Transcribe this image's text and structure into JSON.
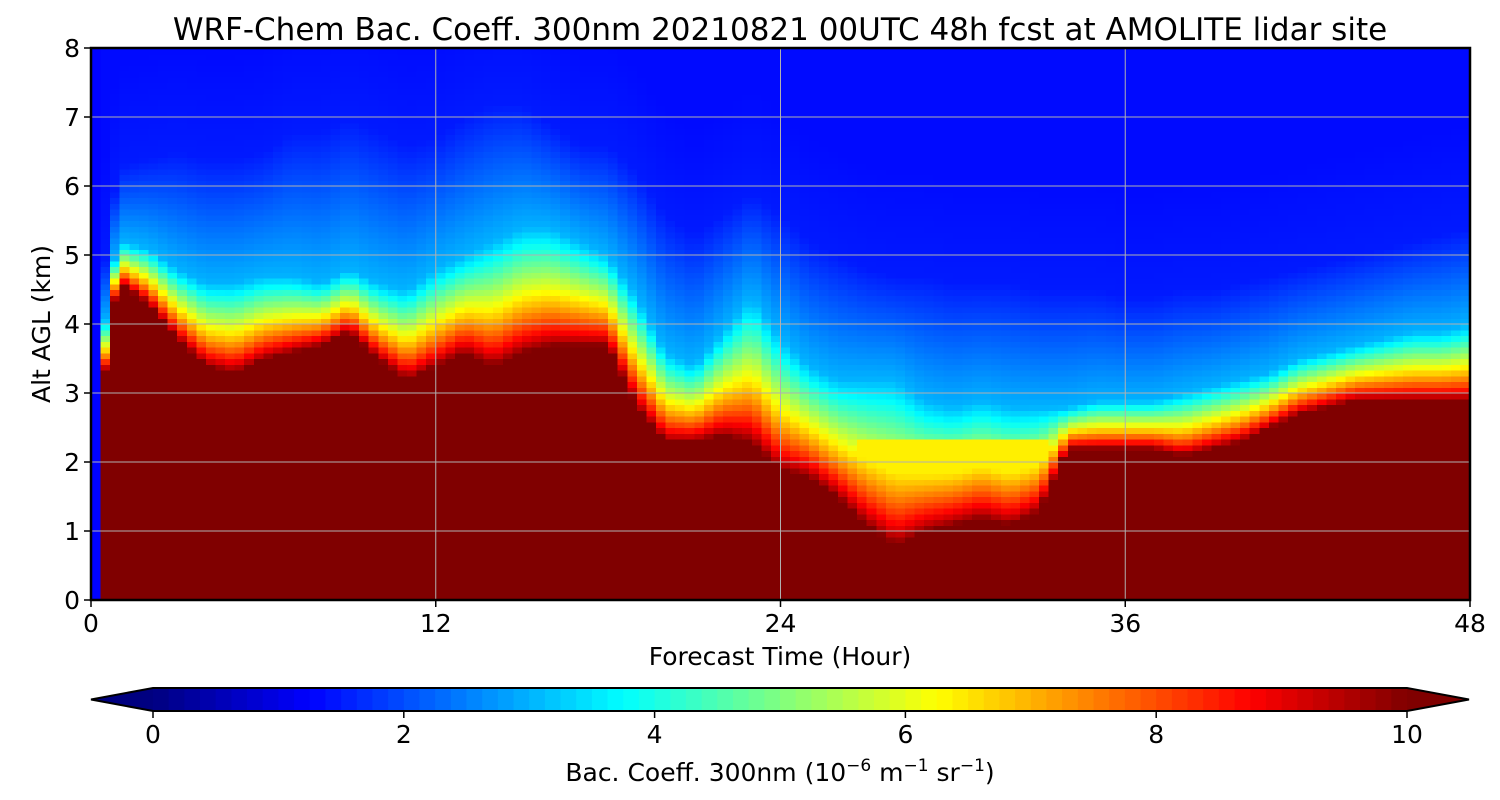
{
  "chart_data": {
    "type": "heatmap",
    "title": "WRF-Chem Bac. Coeff. 300nm  20210821 00UTC 48h fcst at AMOLITE lidar site",
    "xlabel": "Forecast Time (Hour)",
    "ylabel": "Alt AGL (km)",
    "xlim": [
      0,
      48
    ],
    "ylim": [
      0,
      8
    ],
    "x_ticks": [
      "0",
      "12",
      "24",
      "36",
      "48"
    ],
    "x_tick_values": [
      0,
      12,
      24,
      36,
      48
    ],
    "y_ticks": [
      "0",
      "1",
      "2",
      "3",
      "4",
      "5",
      "6",
      "7",
      "8"
    ],
    "y_tick_values": [
      0,
      1,
      2,
      3,
      4,
      5,
      6,
      7,
      8
    ],
    "grid": true,
    "colormap": "jet",
    "colorbar": {
      "min": 0,
      "max": 10,
      "extend": "both",
      "ticks": [
        "0",
        "2",
        "4",
        "6",
        "8",
        "10"
      ],
      "tick_values": [
        0,
        2,
        4,
        6,
        8,
        10
      ],
      "label": "Bac. Coeff. 300nm  (10",
      "label_exp1": "−6",
      "label_mid": " m",
      "label_exp2": "−1",
      "label_end": " sr",
      "label_exp3": "−1",
      "label_close": ")"
    },
    "layers": {
      "x": [
        0,
        0.3,
        0.6,
        1,
        2,
        3,
        4,
        5,
        6,
        7,
        8,
        9,
        10,
        11,
        12,
        13,
        14,
        15,
        16,
        17,
        18,
        19,
        20,
        21,
        22,
        23,
        24,
        25,
        26,
        27,
        28,
        29,
        30,
        31,
        32,
        33,
        34,
        35,
        36,
        37,
        38,
        39,
        40,
        41,
        42,
        43,
        44,
        45,
        46,
        47,
        48
      ],
      "aerosol_top_km": [
        0,
        2.0,
        4.0,
        4.6,
        4.3,
        3.8,
        3.4,
        3.3,
        3.5,
        3.6,
        3.7,
        3.9,
        3.5,
        3.2,
        3.4,
        3.6,
        3.4,
        3.6,
        3.7,
        3.7,
        3.7,
        2.8,
        2.3,
        2.3,
        2.4,
        2.3,
        1.9,
        1.8,
        1.5,
        1.1,
        0.8,
        1.0,
        1.1,
        1.2,
        1.1,
        1.3,
        2.2,
        2.2,
        2.2,
        2.2,
        2.1,
        2.2,
        2.3,
        2.5,
        2.7,
        2.8,
        2.9,
        2.9,
        2.9,
        2.9,
        2.9
      ],
      "transition_top_km": [
        0,
        3.0,
        4.6,
        5.2,
        5.1,
        4.8,
        4.6,
        4.6,
        4.7,
        4.7,
        4.6,
        4.8,
        4.6,
        4.5,
        4.8,
        5.0,
        5.2,
        5.4,
        5.4,
        5.2,
        5.0,
        4.4,
        3.6,
        3.4,
        3.9,
        4.4,
        3.8,
        3.4,
        3.2,
        3.2,
        3.2,
        2.9,
        2.8,
        2.9,
        2.8,
        2.8,
        2.8,
        2.9,
        2.9,
        2.9,
        3.0,
        3.1,
        3.2,
        3.3,
        3.5,
        3.6,
        3.7,
        3.8,
        3.9,
        3.9,
        4.0
      ],
      "clean_top_km": [
        0,
        4.0,
        5.4,
        6.3,
        6.4,
        6.5,
        6.4,
        6.4,
        6.5,
        6.8,
        6.8,
        7.0,
        6.8,
        6.6,
        6.7,
        7.0,
        7.2,
        7.2,
        6.9,
        6.6,
        6.6,
        6.2,
        5.6,
        5.3,
        5.6,
        5.9,
        5.6,
        5.2,
        5.0,
        4.8,
        4.7,
        4.7,
        4.6,
        4.6,
        4.6,
        4.5,
        4.5,
        4.5,
        4.4,
        4.4,
        4.5,
        4.5,
        4.6,
        4.7,
        4.8,
        4.9,
        5.0,
        5.1,
        5.2,
        5.3,
        5.4
      ]
    }
  }
}
